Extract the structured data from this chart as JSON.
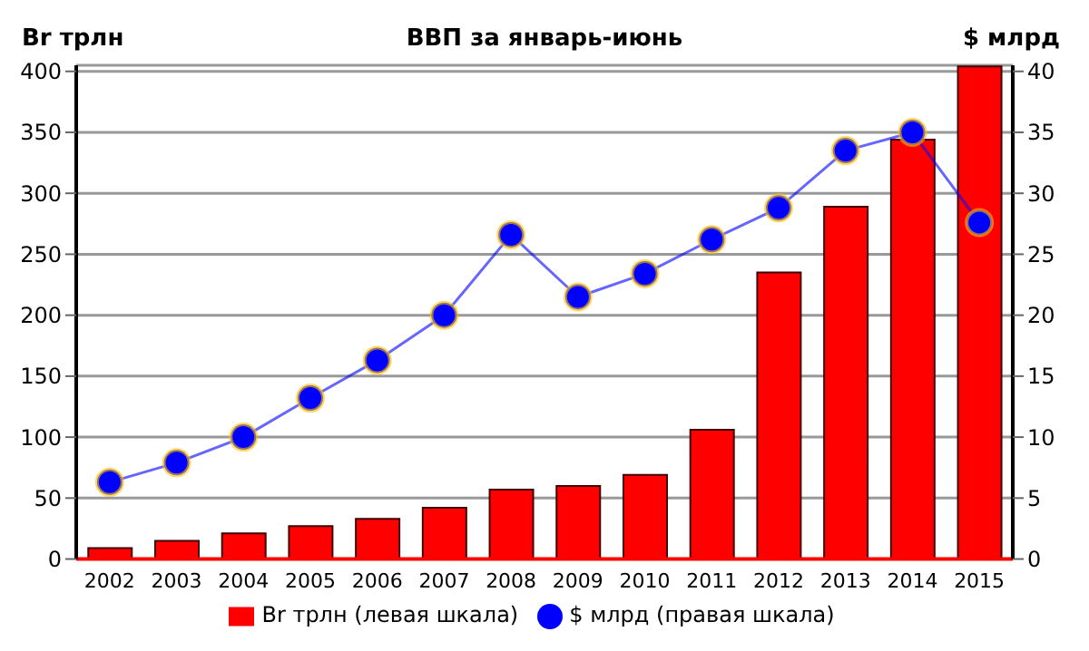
{
  "chart_data": {
    "type": "bar",
    "title": "ВВП за январь-июнь",
    "ylabel": "Br трлн",
    "y2label": "$ млрд",
    "categories": [
      "2002",
      "2003",
      "2004",
      "2005",
      "2006",
      "2007",
      "2008",
      "2009",
      "2010",
      "2011",
      "2012",
      "2013",
      "2014",
      "2015"
    ],
    "series": [
      {
        "name": "Br трлн (левая шкала)",
        "color": "#ff0000",
        "values": [
          9,
          15,
          21,
          27,
          33,
          42,
          57,
          60,
          69,
          106,
          235,
          289,
          344,
          404
        ]
      },
      {
        "name": "$ млрд (правая шкала)",
        "type": "line",
        "axis": "y2",
        "color": "#0000ff",
        "marker": "circle",
        "values": [
          6.3,
          7.9,
          10.0,
          13.2,
          16.3,
          20.0,
          26.6,
          21.5,
          23.4,
          26.2,
          28.8,
          33.5,
          35.0,
          27.6
        ]
      }
    ],
    "ylim": [
      0,
      405
    ],
    "yticks": [
      0,
      50,
      100,
      150,
      200,
      250,
      300,
      350,
      400
    ],
    "y2lim": [
      0,
      40.5
    ],
    "y2ticks": [
      0,
      5,
      10,
      15,
      20,
      25,
      30,
      35,
      40
    ],
    "grid": "y",
    "legend": "bottom"
  }
}
